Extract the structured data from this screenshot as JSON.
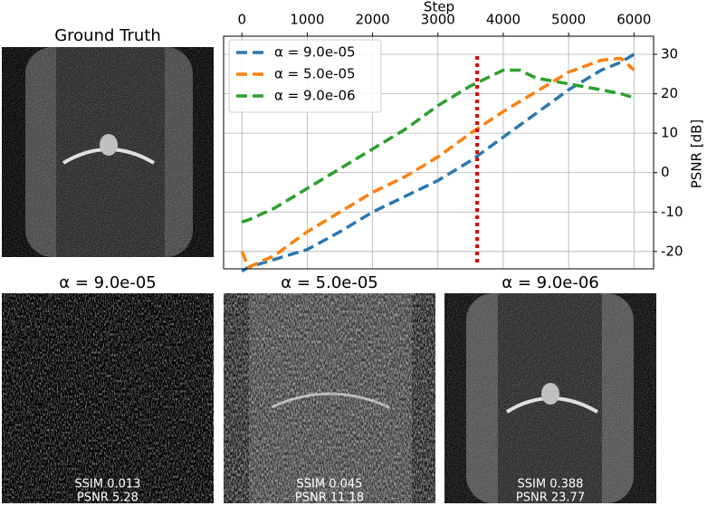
{
  "chart_data": {
    "type": "line",
    "x_label": "Step",
    "y_label": "PSNR [dB]",
    "x": [
      0,
      100,
      500,
      1000,
      1500,
      2000,
      2500,
      3000,
      3500,
      4000,
      4250,
      4500,
      5000,
      5500,
      5800,
      6000
    ],
    "series": [
      {
        "name": "α = 9.0e-05",
        "color": "#2a78b0",
        "values": [
          -25,
          -24,
          -22,
          -19.5,
          -15,
          -10,
          -6,
          -2,
          3,
          9,
          12,
          15,
          21,
          26,
          28,
          30
        ]
      },
      {
        "name": "α = 5.0e-05",
        "color": "#ff7f0e",
        "values": [
          -20,
          -24,
          -21,
          -15,
          -10,
          -5,
          -1,
          4,
          10,
          15.5,
          18,
          20.5,
          25.5,
          28.5,
          29,
          26
        ]
      },
      {
        "name": "α = 9.0e-06",
        "color": "#2ca02c",
        "values": [
          -12.5,
          -12,
          -9,
          -4,
          1,
          6,
          11,
          17,
          22,
          26,
          26,
          24,
          22.5,
          21,
          20,
          19
        ]
      }
    ],
    "vline": 3600,
    "vline_color": "#dd0000",
    "xlim": [
      -280,
      6300
    ],
    "ylim": [
      -24.4,
      34.6
    ],
    "xticks": [
      0,
      1000,
      2000,
      3000,
      4000,
      5000,
      6000
    ],
    "yticks": [
      -20,
      -10,
      0,
      10,
      20,
      30
    ],
    "grid": true,
    "legend": "upper-left"
  },
  "ground_truth": {
    "title": "Ground Truth"
  },
  "reconstructions": [
    {
      "title": "α = 9.0e-05",
      "ssim": "SSIM 0.013",
      "psnr": "PSNR 5.28"
    },
    {
      "title": "α = 5.0e-05",
      "ssim": "SSIM 0.045",
      "psnr": "PSNR 11.18"
    },
    {
      "title": "α = 9.0e-06",
      "ssim": "SSIM 0.388",
      "psnr": "PSNR 23.77"
    }
  ]
}
